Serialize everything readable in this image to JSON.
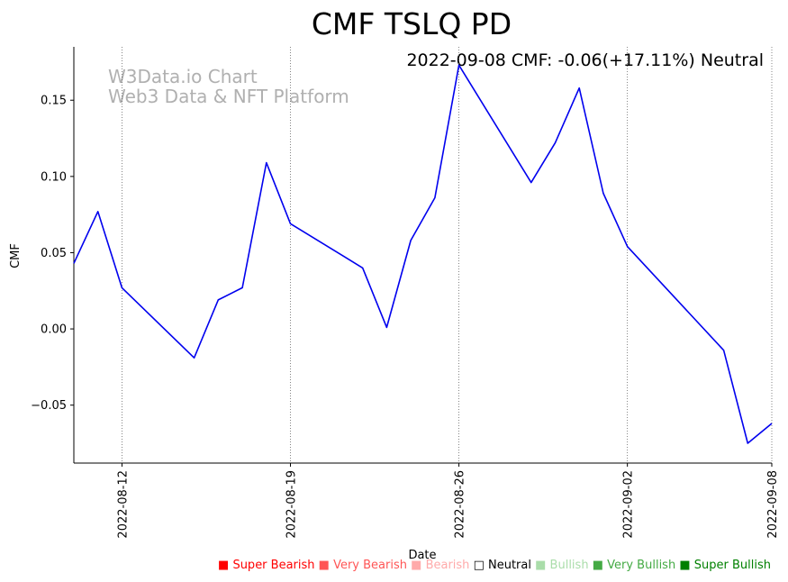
{
  "chart_data": {
    "type": "line",
    "title": "CMF TSLQ PD",
    "annotation": "2022-09-08 CMF: -0.06(+17.11%) Neutral",
    "watermark": [
      "W3Data.io Chart",
      "Web3 Data & NFT Platform"
    ],
    "xlabel": "Date",
    "ylabel": "CMF",
    "ylim": [
      -0.088,
      0.185
    ],
    "yticks": [
      -0.05,
      0.0,
      0.05,
      0.1,
      0.15
    ],
    "ytick_labels": [
      "−0.05",
      "0.00",
      "0.05",
      "0.10",
      "0.15"
    ],
    "xticks": [
      "2022-08-12",
      "2022-08-19",
      "2022-08-26",
      "2022-09-02",
      "2022-09-08"
    ],
    "line_color": "#0000ee",
    "series": [
      {
        "name": "CMF",
        "x": [
          "2022-08-10",
          "2022-08-11",
          "2022-08-12",
          "2022-08-15",
          "2022-08-16",
          "2022-08-17",
          "2022-08-18",
          "2022-08-19",
          "2022-08-22",
          "2022-08-23",
          "2022-08-24",
          "2022-08-25",
          "2022-08-26",
          "2022-08-29",
          "2022-08-30",
          "2022-08-31",
          "2022-09-01",
          "2022-09-02",
          "2022-09-06",
          "2022-09-07",
          "2022-09-08"
        ],
        "values": [
          0.043,
          0.077,
          0.027,
          -0.019,
          0.019,
          0.027,
          0.109,
          0.069,
          0.04,
          0.001,
          0.058,
          0.086,
          0.173,
          0.096,
          0.122,
          0.158,
          0.089,
          0.054,
          -0.014,
          -0.075,
          -0.062
        ]
      }
    ]
  },
  "legend": {
    "items": [
      {
        "label": "Super Bearish",
        "color": "#ff0000"
      },
      {
        "label": "Very Bearish",
        "color": "#ff5555"
      },
      {
        "label": "Bearish",
        "color": "#ffaaaa"
      },
      {
        "label": "Neutral",
        "color": "#000000"
      },
      {
        "label": "Bullish",
        "color": "#aaddaa"
      },
      {
        "label": "Very Bullish",
        "color": "#44aa44"
      },
      {
        "label": "Super Bullish",
        "color": "#008000"
      }
    ]
  }
}
